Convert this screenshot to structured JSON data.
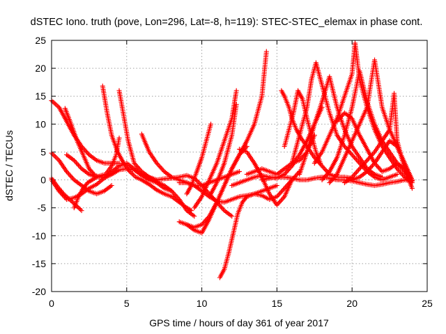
{
  "chart_data": {
    "type": "scatter",
    "title": "dSTEC Iono. truth (pove, Lon=296, Lat=-8, h=119): STEC-STEC_elemax in phase cont.",
    "xlabel": "GPS time / hours of day 361 of year 2017",
    "ylabel": "dSTEC  / TECUs",
    "xlim": [
      0,
      25
    ],
    "ylim": [
      -20,
      25
    ],
    "xticks": [
      0,
      5,
      10,
      15,
      20,
      25
    ],
    "yticks": [
      -20,
      -15,
      -10,
      -5,
      0,
      5,
      10,
      15,
      20,
      25
    ],
    "xtick_labels": [
      "0",
      "5",
      "10",
      "15",
      "20",
      "25"
    ],
    "ytick_labels": [
      "-20",
      "-15",
      "-10",
      "-5",
      "0",
      "5",
      "10",
      "15",
      "20",
      "25"
    ],
    "grid": true,
    "marker": "+",
    "color": "#ff0000",
    "series": [
      {
        "x": [
          0.0,
          0.5,
          1.0,
          1.5,
          2.0,
          2.5,
          3.0,
          3.5,
          4.0,
          4.5
        ],
        "y": [
          14.2,
          13.0,
          10.5,
          8.0,
          6.0,
          4.5,
          3.5,
          3.0,
          3.0,
          3.0
        ]
      },
      {
        "x": [
          0.0,
          0.5,
          1.0,
          1.5,
          2.0,
          2.5,
          3.0,
          3.5,
          4.0
        ],
        "y": [
          4.8,
          3.5,
          1.5,
          0.0,
          -1.0,
          -2.0,
          -2.5,
          -2.0,
          -1.0
        ]
      },
      {
        "x": [
          0.0,
          0.4,
          0.8,
          1.2,
          1.6,
          2.0
        ],
        "y": [
          0.3,
          -1.2,
          -2.5,
          -3.5,
          -4.5,
          -5.5
        ]
      },
      {
        "x": [
          0.9,
          1.3,
          1.7,
          2.1,
          2.5,
          2.9,
          3.3
        ],
        "y": [
          12.8,
          10.0,
          7.0,
          4.5,
          2.0,
          0.8,
          0.5
        ]
      },
      {
        "x": [
          0.0,
          0.5,
          1.0,
          1.5,
          2.0,
          2.5,
          3.0,
          3.5,
          4.0,
          4.5,
          5.0,
          5.5,
          6.0,
          6.5,
          7.0,
          7.5,
          8.0
        ],
        "y": [
          0.0,
          -2.0,
          -3.5,
          -3.2,
          -2.5,
          -1.5,
          -0.8,
          0.3,
          1.0,
          1.8,
          2.0,
          1.8,
          0.8,
          0.0,
          -0.5,
          -1.5,
          -2.0
        ]
      },
      {
        "x": [
          1.0,
          1.5,
          2.0,
          2.5,
          3.0,
          3.5,
          4.0,
          4.5,
          5.0,
          5.5,
          6.0,
          6.5,
          7.0
        ],
        "y": [
          4.5,
          3.5,
          2.0,
          1.0,
          0.5,
          0.5,
          1.5,
          2.5,
          3.0,
          2.0,
          1.0,
          0.5,
          0.0
        ]
      },
      {
        "x": [
          3.4,
          3.7,
          4.0,
          4.4,
          4.8,
          5.2,
          5.6,
          6.0,
          6.5,
          7.0,
          7.5,
          8.0,
          8.5,
          9.0,
          9.3
        ],
        "y": [
          16.8,
          12.0,
          8.0,
          5.0,
          3.0,
          1.5,
          0.5,
          0.0,
          -0.8,
          -1.8,
          -2.5,
          -3.0,
          -4.0,
          -5.0,
          -5.5
        ]
      },
      {
        "x": [
          4.5,
          4.7,
          4.9,
          5.1,
          5.3,
          5.5,
          6.0,
          6.5,
          7.0,
          7.5,
          8.0,
          8.5,
          9.0,
          9.5
        ],
        "y": [
          16.0,
          13.0,
          10.0,
          7.0,
          5.0,
          3.0,
          1.5,
          0.5,
          -0.3,
          -1.0,
          -2.0,
          -3.5,
          -5.5,
          -6.5
        ]
      },
      {
        "x": [
          1.5,
          1.8,
          2.1,
          2.4,
          2.7,
          3.0,
          3.3,
          3.6,
          4.0,
          4.3,
          4.5
        ],
        "y": [
          -5.0,
          -3.0,
          -1.5,
          -0.5,
          0.0,
          0.5,
          0.8,
          1.0,
          2.5,
          4.5,
          7.5
        ]
      },
      {
        "x": [
          6.0,
          6.5,
          7.0,
          7.5,
          8.0,
          8.5,
          9.0,
          9.5,
          10.0,
          10.5,
          11.0,
          11.5,
          12.0,
          12.5
        ],
        "y": [
          8.2,
          5.0,
          3.0,
          1.5,
          0.5,
          0.0,
          -0.5,
          -1.0,
          -1.0,
          -0.5,
          0.0,
          0.5,
          1.0,
          1.5
        ]
      },
      {
        "x": [
          7.0,
          7.5,
          8.0,
          8.5,
          9.0,
          9.5,
          10.0,
          10.5,
          11.0,
          11.5,
          12.0
        ],
        "y": [
          0.0,
          0.2,
          0.3,
          0.5,
          0.8,
          0.3,
          -1.0,
          -2.5,
          -4.0,
          -5.5,
          -6.5
        ]
      },
      {
        "x": [
          8.5,
          9.0,
          9.5,
          10.0,
          10.5,
          11.0,
          11.5,
          12.0,
          12.5,
          13.0,
          13.5,
          14.0,
          14.5,
          15.0
        ],
        "y": [
          -0.5,
          -0.5,
          -1.0,
          -2.0,
          -3.0,
          -3.8,
          -4.0,
          -3.5,
          -3.0,
          -2.8,
          -2.5,
          -2.0,
          -1.5,
          -1.0
        ]
      },
      {
        "x": [
          8.5,
          9.0,
          9.5,
          10.0,
          10.5,
          11.0,
          11.5,
          12.0,
          12.5,
          13.0
        ],
        "y": [
          -7.5,
          -8.0,
          -8.5,
          -8.0,
          -6.5,
          -4.0,
          -1.0,
          2.0,
          4.5,
          6.0
        ]
      },
      {
        "x": [
          9.0,
          9.5,
          10.0,
          10.5,
          11.0,
          11.5,
          12.0,
          12.5,
          13.0,
          13.5,
          14.0,
          14.3
        ],
        "y": [
          -8.0,
          -9.0,
          -9.5,
          -7.0,
          -4.0,
          -1.0,
          2.0,
          4.5,
          7.0,
          10.0,
          15.0,
          23.0
        ]
      },
      {
        "x": [
          9.0,
          9.3,
          9.6,
          10.0,
          10.3,
          10.6
        ],
        "y": [
          -2.5,
          -1.0,
          1.0,
          4.0,
          7.0,
          10.0
        ]
      },
      {
        "x": [
          9.5,
          10.0,
          10.5,
          11.0,
          11.5,
          12.0,
          12.3
        ],
        "y": [
          -5.0,
          -3.0,
          0.0,
          3.0,
          7.0,
          11.0,
          16.0
        ]
      },
      {
        "x": [
          10.5,
          11.0,
          11.5,
          12.0,
          12.3
        ],
        "y": [
          -3.0,
          -0.5,
          3.0,
          8.0,
          13.5
        ]
      },
      {
        "x": [
          11.2,
          11.5,
          11.8,
          12.1,
          12.4,
          12.7,
          13.0,
          13.5,
          14.0,
          14.5,
          15.0,
          15.5,
          16.0,
          16.5
        ],
        "y": [
          -17.5,
          -16.0,
          -13.0,
          -9.5,
          -6.0,
          -4.0,
          -3.0,
          -2.5,
          -2.8,
          -3.5,
          -3.0,
          -1.5,
          0.0,
          1.5
        ]
      },
      {
        "x": [
          12.0,
          12.5,
          13.0,
          13.5,
          14.0,
          14.5,
          15.0,
          15.5,
          16.0,
          16.5,
          17.0,
          17.5,
          18.0
        ],
        "y": [
          -1.0,
          -0.5,
          0.0,
          0.5,
          0.8,
          0.5,
          0.3,
          1.0,
          2.5,
          4.5,
          7.0,
          10.0,
          13.0
        ]
      },
      {
        "x": [
          12.5,
          13.0,
          13.5,
          14.0,
          14.5,
          15.0,
          15.5,
          16.0
        ],
        "y": [
          5.5,
          5.0,
          3.0,
          0.5,
          -2.5,
          -4.5,
          -3.0,
          0.0
        ]
      },
      {
        "x": [
          13.0,
          13.5,
          14.0,
          14.5,
          15.0,
          15.5,
          16.0,
          16.5,
          17.0,
          17.5
        ],
        "y": [
          1.0,
          1.5,
          2.0,
          1.5,
          1.0,
          2.0,
          3.0,
          3.5,
          5.0,
          8.0
        ]
      },
      {
        "x": [
          14.0,
          14.5,
          15.0,
          15.5,
          16.0,
          16.5,
          17.0,
          17.5,
          18.0,
          18.5,
          19.0,
          19.5,
          20.0,
          20.5,
          21.0,
          21.5,
          22.0,
          22.5,
          23.0,
          23.5,
          24.0
        ],
        "y": [
          0.0,
          0.3,
          0.5,
          0.5,
          0.3,
          0.0,
          0.0,
          0.3,
          0.5,
          0.3,
          0.0,
          0.0,
          -0.2,
          -0.5,
          -0.8,
          -1.0,
          -0.8,
          -0.5,
          -0.3,
          0.0,
          -0.2
        ]
      },
      {
        "x": [
          15.3,
          15.5,
          15.8,
          16.0,
          16.3,
          16.6,
          17.0,
          17.5,
          18.0,
          18.5,
          19.0,
          19.5,
          20.0
        ],
        "y": [
          16.0,
          15.0,
          13.0,
          11.0,
          9.0,
          7.5,
          6.0,
          4.0,
          2.5,
          1.0,
          0.5,
          0.5,
          0.3
        ]
      },
      {
        "x": [
          15.5,
          15.8,
          16.1,
          16.4,
          16.7,
          17.0,
          17.3,
          17.6,
          17.9
        ],
        "y": [
          6.0,
          9.0,
          12.0,
          16.0,
          14.5,
          11.0,
          8.0,
          5.0,
          3.0
        ]
      },
      {
        "x": [
          16.0,
          16.5,
          17.0,
          17.3,
          17.6,
          18.0,
          18.5,
          19.0,
          19.5,
          20.0,
          20.5,
          21.0,
          21.5,
          22.0,
          22.5,
          23.0
        ],
        "y": [
          3.0,
          8.0,
          13.0,
          18.0,
          21.0,
          17.0,
          12.0,
          8.0,
          6.0,
          4.5,
          3.0,
          1.5,
          0.5,
          0.0,
          0.5,
          1.0
        ]
      },
      {
        "x": [
          16.5,
          17.0,
          17.5,
          18.0,
          18.5,
          19.0,
          19.5,
          20.0,
          20.5,
          21.0,
          21.5,
          22.0
        ],
        "y": [
          1.0,
          5.0,
          10.0,
          14.0,
          18.5,
          13.0,
          9.0,
          6.0,
          4.0,
          2.0,
          1.0,
          0.5
        ]
      },
      {
        "x": [
          17.5,
          18.0,
          18.5,
          19.0,
          19.5,
          20.0,
          20.2,
          20.5,
          21.0,
          21.5,
          22.0,
          22.5,
          23.0,
          23.5,
          24.0
        ],
        "y": [
          3.0,
          5.0,
          8.0,
          11.0,
          15.0,
          19.0,
          24.5,
          18.0,
          13.0,
          9.0,
          6.0,
          4.0,
          2.0,
          0.5,
          -0.5
        ]
      },
      {
        "x": [
          18.0,
          18.5,
          19.0,
          19.5,
          20.0,
          20.5,
          21.0,
          21.5,
          22.0,
          22.5,
          23.0,
          23.5,
          24.0
        ],
        "y": [
          0.0,
          1.5,
          4.0,
          8.0,
          13.0,
          19.5,
          14.0,
          10.0,
          7.0,
          5.0,
          3.0,
          1.5,
          0.0
        ]
      },
      {
        "x": [
          18.5,
          19.0,
          19.5,
          20.0,
          20.5,
          21.0,
          21.5,
          22.0,
          22.5,
          23.0,
          23.5,
          24.0
        ],
        "y": [
          -0.5,
          1.0,
          4.0,
          7.0,
          10.0,
          13.0,
          21.5,
          13.0,
          9.0,
          6.0,
          3.0,
          0.0
        ]
      },
      {
        "x": [
          19.5,
          20.0,
          20.5,
          21.0,
          21.5,
          22.0,
          22.5,
          22.8,
          23.0,
          23.5,
          24.0
        ],
        "y": [
          -0.5,
          0.5,
          2.0,
          3.5,
          5.0,
          7.0,
          9.0,
          15.5,
          7.0,
          2.0,
          -1.5
        ]
      },
      {
        "x": [
          19.0,
          19.5,
          20.0,
          20.5,
          21.0,
          21.5,
          22.0,
          22.5,
          23.0,
          23.5,
          24.0
        ],
        "y": [
          10.5,
          12.0,
          11.0,
          8.0,
          5.5,
          3.0,
          1.5,
          2.0,
          3.0,
          2.0,
          0.0
        ]
      },
      {
        "x": [
          20.0,
          20.5,
          21.0,
          21.5,
          22.0,
          22.5,
          23.0,
          23.5,
          24.0
        ],
        "y": [
          0.0,
          0.5,
          1.5,
          3.0,
          5.0,
          7.0,
          6.0,
          3.0,
          0.0
        ]
      }
    ]
  }
}
